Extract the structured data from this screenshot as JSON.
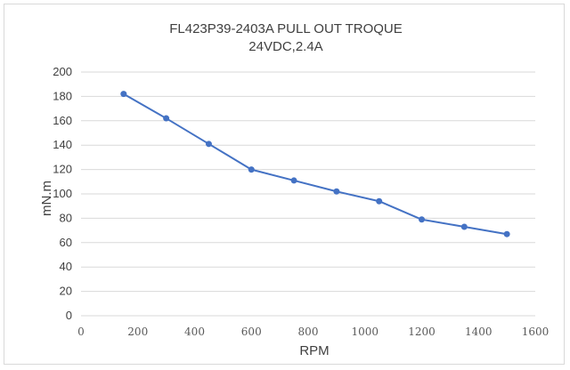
{
  "chart_data": {
    "type": "line",
    "title": "FL423P39-2403A PULL OUT TROQUE",
    "subtitle": "24VDC,2.4A",
    "xlabel": "RPM",
    "ylabel": "mN.m",
    "xlim": [
      0,
      1600
    ],
    "ylim": [
      0,
      200
    ],
    "xticks": [
      0,
      200,
      400,
      600,
      800,
      1000,
      1200,
      1400,
      1600
    ],
    "yticks": [
      0,
      20,
      40,
      60,
      80,
      100,
      120,
      140,
      160,
      180,
      200
    ],
    "grid": true,
    "legend": "none",
    "series": [
      {
        "color": "#4472c4",
        "x": [
          150,
          300,
          450,
          600,
          750,
          900,
          1050,
          1200,
          1350,
          1500
        ],
        "y": [
          182,
          162,
          141,
          120,
          111,
          102,
          94,
          79,
          73,
          67
        ]
      }
    ]
  }
}
